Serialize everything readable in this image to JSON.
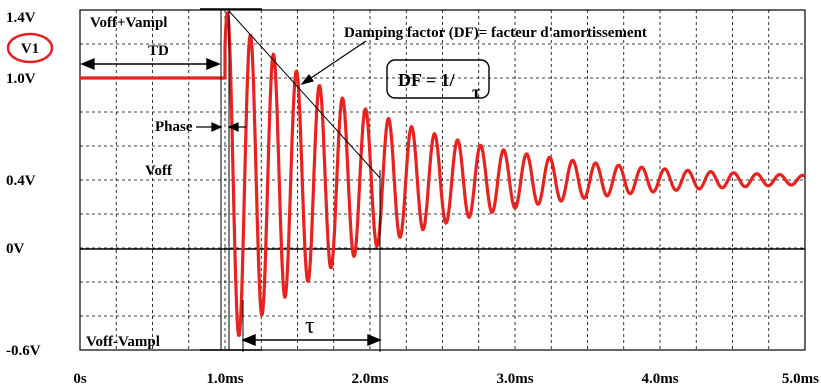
{
  "chart_data": {
    "type": "line",
    "xlim": [
      0,
      5
    ],
    "ylim": [
      -0.6,
      1.4
    ],
    "x_ticks": [
      "0s",
      "1.0ms",
      "2.0ms",
      "3.0ms",
      "4.0ms",
      "5.0ms"
    ],
    "y_ticks": [
      "1.4V",
      "1.0V",
      "0.4V",
      "0V",
      "-0.6V"
    ],
    "y_tick_values": [
      1.4,
      1.0,
      0.4,
      0,
      -0.6
    ],
    "grid": true,
    "series": [
      {
        "color": "#e8231f",
        "signal": {
          "offset_v": 0.4,
          "amplitude_v": 1.0,
          "frequency_khz": 6.3,
          "delay_ms": 1.0,
          "damping_per_ms": 0.9,
          "initial_v": 1.0,
          "end_ms": 5.0
        }
      }
    ]
  },
  "labels": {
    "v1": "V1",
    "voff_vampl": "Voff+Vampl",
    "td": "TD",
    "phase": "Phase",
    "voff": "Voff",
    "voff_minus_vampl": "Voff-Vampl",
    "damping_title": "Damping factor (DF)= facteur d'amortissement",
    "df_formula": "DF = 1/",
    "tau": "τ"
  },
  "colors": {
    "signal": "#e8231f",
    "v1_circle": "#e8231f",
    "grid": "#000000"
  }
}
